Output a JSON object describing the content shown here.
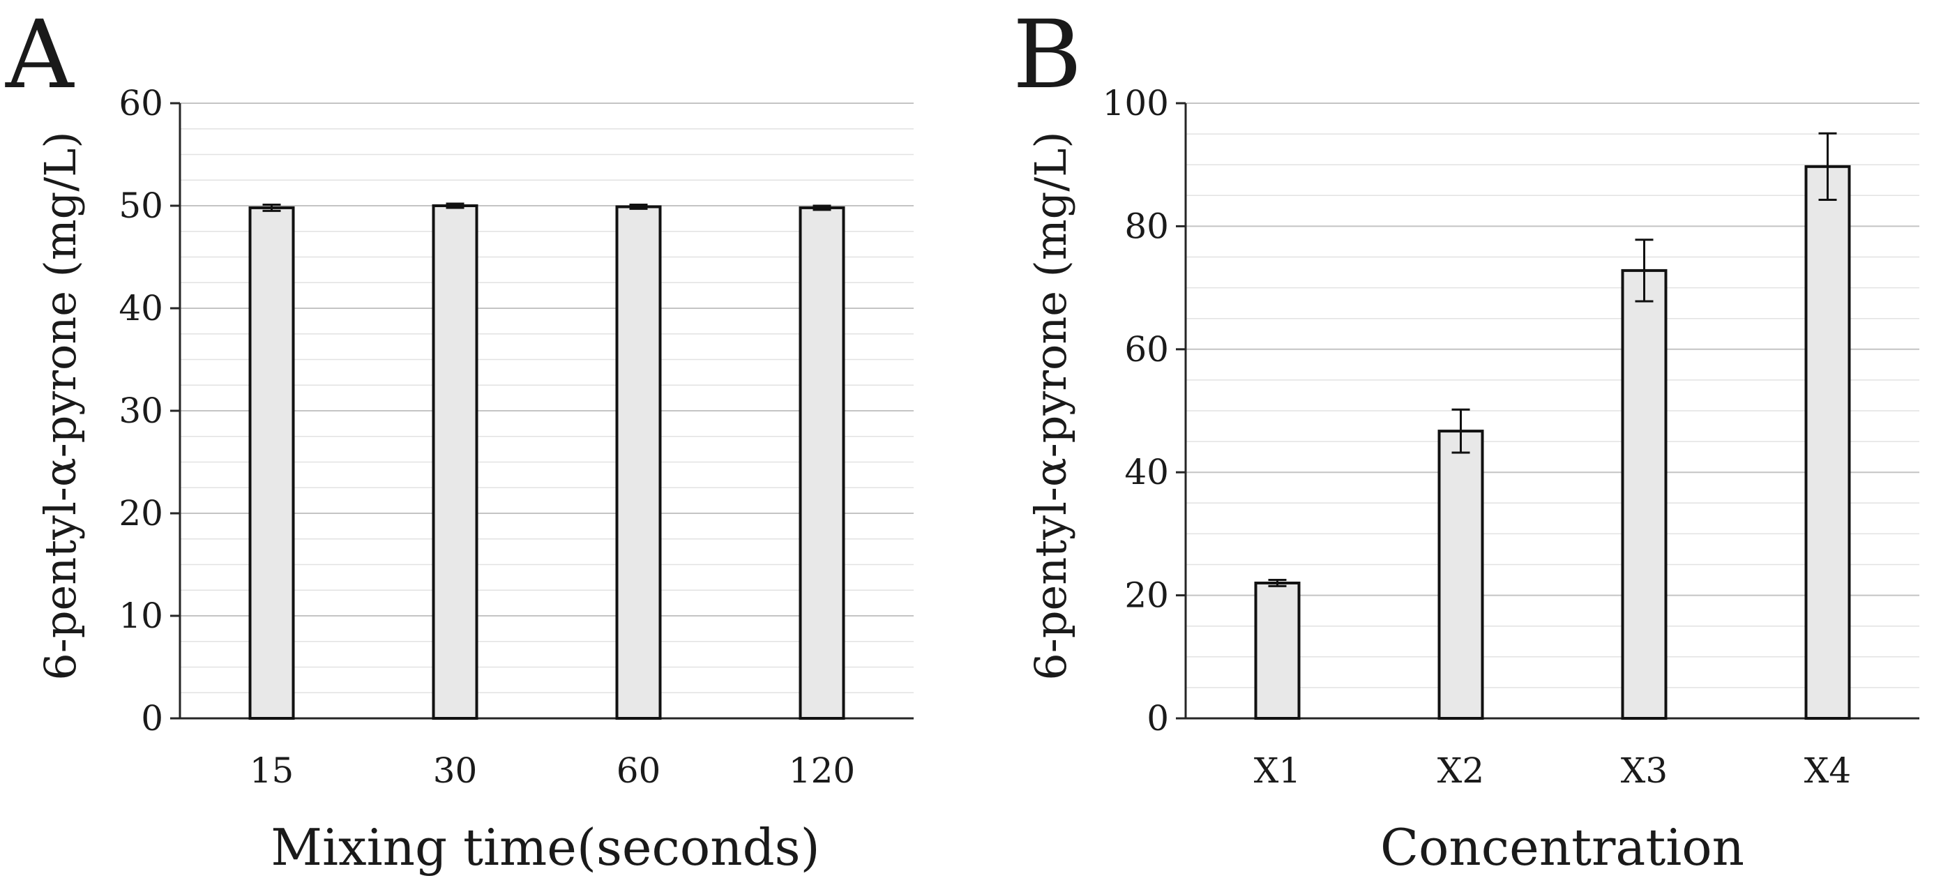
{
  "chart_data": [
    {
      "type": "bar",
      "panel_label": "A",
      "categories": [
        "15",
        "30",
        "60",
        "120"
      ],
      "values": [
        49.8,
        50.0,
        49.9,
        49.8
      ],
      "errors": [
        0.3,
        0.2,
        0.2,
        0.2
      ],
      "xlabel": "Mixing time(seconds)",
      "ylabel": "6-pentyl-α-pyrone (mg/L)",
      "ylim": [
        0,
        60
      ],
      "yticks": [
        "0",
        "10",
        "20",
        "30",
        "40",
        "50",
        "60"
      ],
      "grid": true,
      "colors": {
        "bar_fill": "#e8e8e8",
        "bar_stroke": "#111111"
      }
    },
    {
      "type": "bar",
      "panel_label": "B",
      "categories": [
        "X1",
        "X2",
        "X3",
        "X4"
      ],
      "values": [
        22.0,
        46.7,
        72.8,
        89.7
      ],
      "errors": [
        0.5,
        3.5,
        5.0,
        5.4
      ],
      "xlabel": "Concentration",
      "ylabel": "6-pentyl-α-pyrone (mg/L)",
      "ylim": [
        0,
        100
      ],
      "yticks": [
        "0",
        "20",
        "40",
        "60",
        "80",
        "100"
      ],
      "grid": true,
      "colors": {
        "bar_fill": "#e8e8e8",
        "bar_stroke": "#111111"
      }
    }
  ]
}
